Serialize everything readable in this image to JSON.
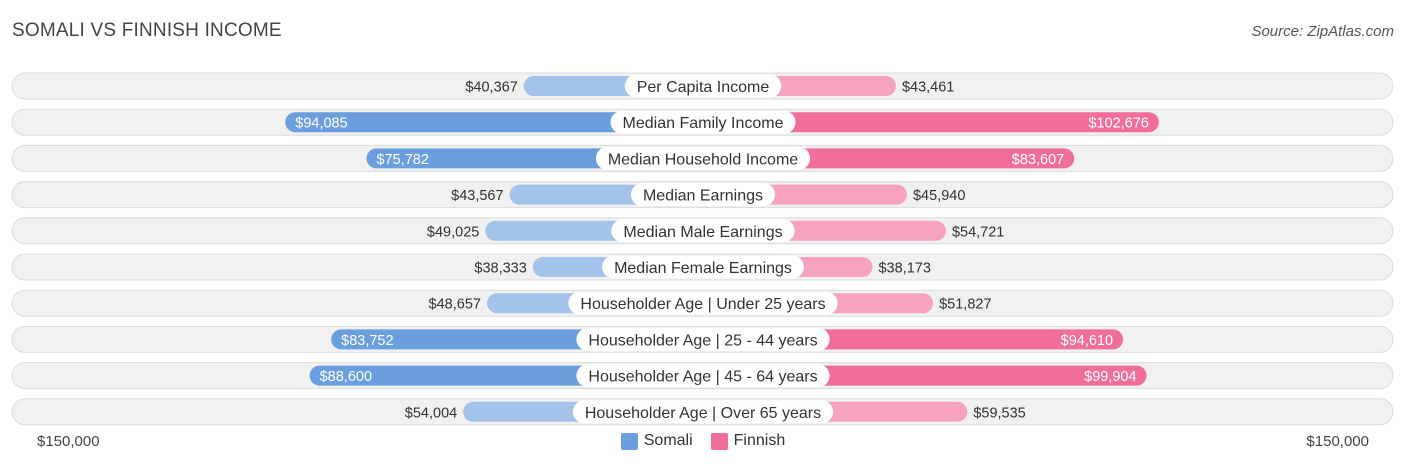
{
  "title": "SOMALI VS FINNISH INCOME",
  "source": "Source: ZipAtlas.com",
  "chart_data": {
    "type": "bar",
    "orientation": "horizontal-diverging",
    "categories": [
      "Per Capita Income",
      "Median Family Income",
      "Median Household Income",
      "Median Earnings",
      "Median Male Earnings",
      "Median Female Earnings",
      "Householder Age | Under 25 years",
      "Householder Age | 25 - 44 years",
      "Householder Age | 45 - 64 years",
      "Householder Age | Over 65 years"
    ],
    "series": [
      {
        "name": "Somali",
        "side": "left",
        "color_light": "#a4c3ea",
        "color_strong": "#6a9edf",
        "values": [
          40367,
          94085,
          75782,
          43567,
          49025,
          38333,
          48657,
          83752,
          88600,
          54004
        ],
        "labels": [
          "$40,367",
          "$94,085",
          "$75,782",
          "$43,567",
          "$49,025",
          "$38,333",
          "$48,657",
          "$83,752",
          "$88,600",
          "$54,004"
        ]
      },
      {
        "name": "Finnish",
        "side": "right",
        "color_light": "#f7a3bf",
        "color_strong": "#f06e98",
        "values": [
          43461,
          102676,
          83607,
          45940,
          54721,
          38173,
          51827,
          94610,
          99904,
          59535
        ],
        "labels": [
          "$43,461",
          "$102,676",
          "$83,607",
          "$45,940",
          "$54,721",
          "$38,173",
          "$51,827",
          "$94,610",
          "$99,904",
          "$59,535"
        ]
      }
    ],
    "xlim": [
      -150000,
      150000
    ],
    "axis_left_label": "$150,000",
    "axis_right_label": "$150,000",
    "legend": {
      "placement": "bottom-center"
    }
  }
}
